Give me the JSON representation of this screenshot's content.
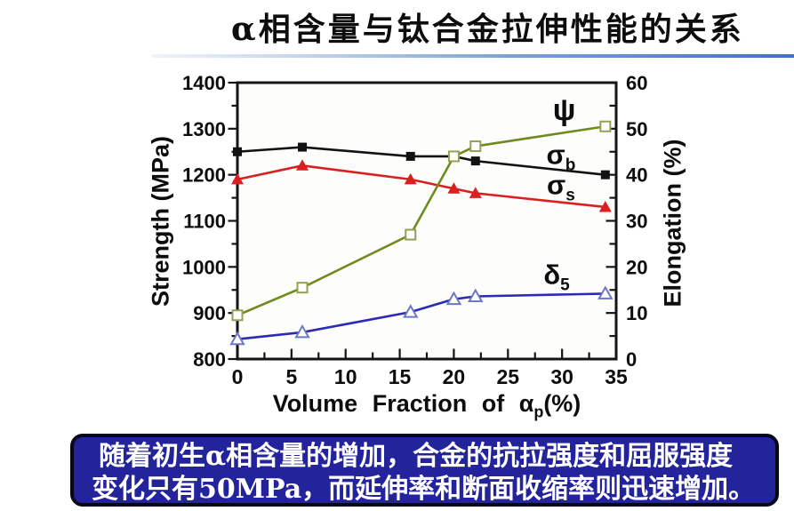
{
  "title": "α相含量与钛合金拉伸性能的关系",
  "caption": {
    "line1": "随着初生α相含量的增加，合金的抗拉强度和屈服强度",
    "line2": "变化只有50MPa，而延伸率和断面收缩率则迅速增加。",
    "bg_color": "#23239b",
    "text_color": "#ffffff"
  },
  "chart_data": {
    "type": "line",
    "x": [
      0,
      6,
      16,
      20,
      22,
      34
    ],
    "xlabel": {
      "main": "Volume Fraction of α",
      "sub": "p",
      "suffix": "(%)"
    },
    "x_axis": {
      "min": 0,
      "max": 35,
      "major_step": 5,
      "minor_step": 2.5,
      "ticks": [
        0,
        5,
        10,
        15,
        20,
        25,
        30,
        35
      ]
    },
    "left_axis": {
      "label": "Strength (MPa)",
      "min": 800,
      "max": 1400,
      "major_step": 100,
      "minor_step": 50,
      "ticks": [
        800,
        900,
        1000,
        1100,
        1200,
        1300,
        1400
      ]
    },
    "right_axis": {
      "label": "Elongation (%)",
      "min": 0,
      "max": 60,
      "major_step": 10,
      "minor_step": 5,
      "ticks": [
        0,
        10,
        20,
        30,
        40,
        50,
        60
      ]
    },
    "grid": false,
    "legend_position": "inline-right",
    "series": [
      {
        "name": "psi",
        "label_main": "ψ",
        "label_sub": "",
        "axis": "right",
        "color": "#6f8b1f",
        "marker": "square-open",
        "marker_edge": "#93a155",
        "values": [
          9.5,
          15.5,
          27,
          44,
          46.2,
          50.5
        ],
        "label_pos": {
          "x": 30.2,
          "y": 54
        }
      },
      {
        "name": "sigma-b",
        "label_main": "σ",
        "label_sub": "b",
        "axis": "left",
        "color": "#121212",
        "marker": "square-filled",
        "marker_edge": "#121212",
        "values": [
          1250,
          1260,
          1240,
          1240,
          1230,
          1200
        ],
        "label_pos": {
          "x": 29.9,
          "y": 1238
        }
      },
      {
        "name": "sigma-s",
        "label_main": "σ",
        "label_sub": "s",
        "axis": "left",
        "color": "#d92020",
        "marker": "triangle-filled",
        "marker_edge": "#d92020",
        "values": [
          1190,
          1220,
          1190,
          1170,
          1160,
          1130
        ],
        "label_pos": {
          "x": 29.9,
          "y": 1172
        }
      },
      {
        "name": "delta-5",
        "label_main": "δ",
        "label_sub": "5",
        "axis": "right",
        "color": "#2b2bb4",
        "marker": "triangle-open",
        "marker_edge": "#6a78c8",
        "values": [
          4.3,
          5.8,
          10.2,
          13,
          13.6,
          14.2
        ],
        "label_pos": {
          "x": 29.5,
          "y": 17.8
        }
      }
    ]
  }
}
